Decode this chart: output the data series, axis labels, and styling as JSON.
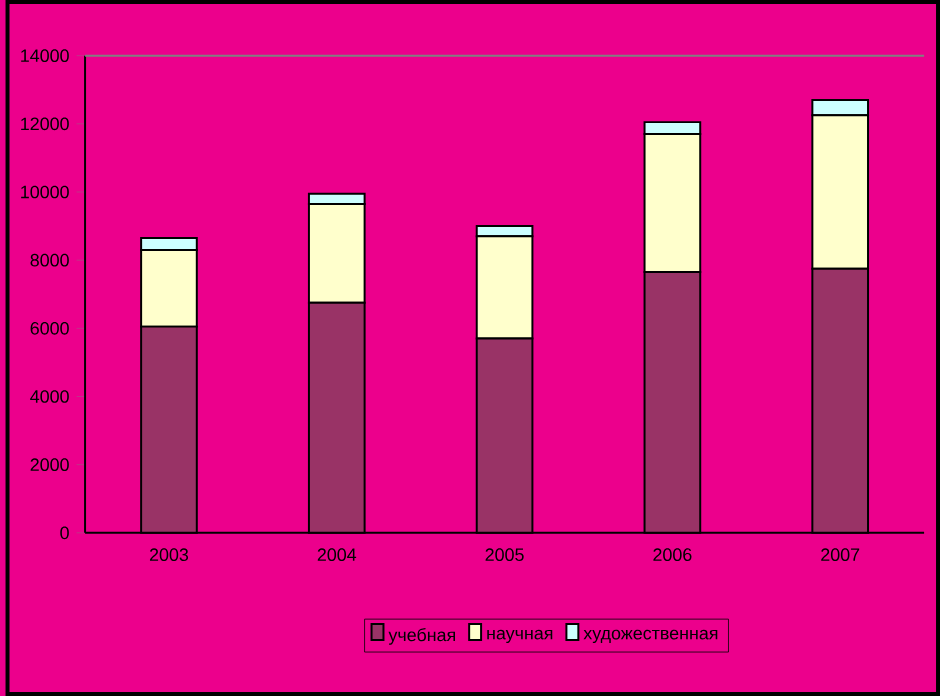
{
  "chart_data": {
    "type": "bar",
    "stacked": true,
    "categories": [
      "2003",
      "2004",
      "2005",
      "2006",
      "2007"
    ],
    "series": [
      {
        "name": "учебная",
        "color": "#993366",
        "values": [
          6050,
          6750,
          5700,
          7650,
          7750
        ]
      },
      {
        "name": "научная",
        "color": "#ffffcc",
        "values": [
          2250,
          2900,
          3000,
          4050,
          4500
        ]
      },
      {
        "name": "художественная",
        "color": "#ccffff",
        "values": [
          350,
          300,
          300,
          350,
          450
        ]
      }
    ],
    "ylim": [
      0,
      14000
    ],
    "yticks": [
      0,
      2000,
      4000,
      6000,
      8000,
      10000,
      12000,
      14000
    ],
    "grid": false,
    "legend": "bottom"
  }
}
